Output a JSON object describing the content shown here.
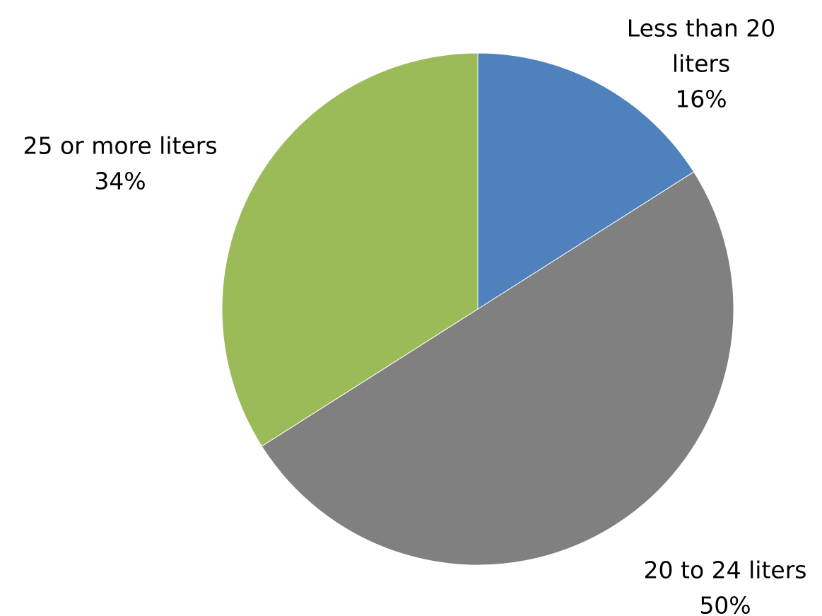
{
  "chart_data": {
    "type": "pie",
    "slices": [
      {
        "label": "Less than 20 liters",
        "label_lines": [
          "Less than 20",
          "liters"
        ],
        "value": 16,
        "value_text": "16%",
        "color": "#4f81bd"
      },
      {
        "label": "20 to 24 liters",
        "label_lines": [
          "20 to 24 liters"
        ],
        "value": 50,
        "value_text": "50%",
        "color": "#808080"
      },
      {
        "label": "25 or more liters",
        "label_lines": [
          "25 or more liters"
        ],
        "value": 34,
        "value_text": "34%",
        "color": "#9bbb59"
      }
    ],
    "start_angle_deg": 0,
    "direction": "clockwise",
    "legend": "none"
  }
}
